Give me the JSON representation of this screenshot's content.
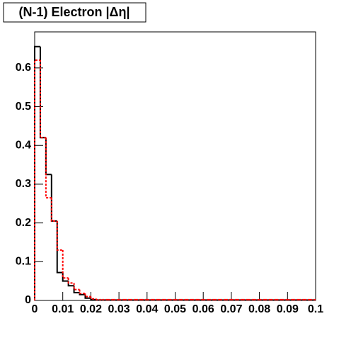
{
  "chart_data": {
    "type": "histogram",
    "title": "(N-1) Electron |Δη|",
    "bins": [
      0,
      0.002,
      0.004,
      0.006,
      0.008,
      0.01,
      0.012,
      0.014,
      0.016,
      0.018,
      0.02,
      0.022,
      0.024,
      0.026,
      0.028,
      0.03,
      0.032,
      0.034,
      0.036,
      0.038,
      0.04,
      0.042,
      0.044,
      0.046,
      0.048,
      0.05,
      0.052,
      0.054,
      0.056,
      0.058,
      0.06,
      0.062,
      0.064,
      0.066,
      0.068,
      0.07,
      0.072,
      0.074,
      0.076,
      0.078,
      0.08,
      0.082,
      0.084,
      0.086,
      0.088,
      0.09,
      0.092,
      0.094,
      0.096,
      0.098,
      0.1
    ],
    "series": [
      {
        "color": "#000000",
        "dashed": false,
        "values": [
          0.655,
          0.42,
          0.325,
          0.205,
          0.072,
          0.05,
          0.038,
          0.02,
          0.015,
          0.006,
          0.002,
          0.001,
          0.001,
          0.001,
          0.001,
          0.001,
          0.001,
          0.001,
          0.001,
          0.001,
          0.001,
          0.001,
          0.001,
          0.001,
          0.001,
          0.001,
          0.001,
          0.001,
          0.001,
          0.001,
          0.001,
          0.001,
          0.001,
          0.001,
          0.001,
          0.001,
          0.001,
          0.001,
          0.001,
          0.001,
          0.001,
          0.001,
          0.001,
          0.001,
          0.001,
          0.001,
          0.001,
          0.001,
          0.001,
          0.001
        ]
      },
      {
        "color": "#ff0000",
        "dashed": true,
        "values": [
          0.62,
          0.42,
          0.265,
          0.205,
          0.13,
          0.058,
          0.045,
          0.028,
          0.018,
          0.01,
          0.004,
          0.002,
          0.002,
          0.002,
          0.002,
          0.002,
          0.002,
          0.002,
          0.002,
          0.002,
          0.002,
          0.002,
          0.002,
          0.002,
          0.002,
          0.002,
          0.002,
          0.002,
          0.002,
          0.002,
          0.002,
          0.002,
          0.002,
          0.002,
          0.002,
          0.002,
          0.002,
          0.002,
          0.002,
          0.002,
          0.002,
          0.002,
          0.002,
          0.002,
          0.002,
          0.002,
          0.002,
          0.002,
          0.002,
          0.002
        ]
      }
    ],
    "xlim": [
      0,
      0.1
    ],
    "xticks": [
      0,
      0.01,
      0.02,
      0.03,
      0.04,
      0.05,
      0.06,
      0.07,
      0.08,
      0.09,
      0.1
    ],
    "ylim": [
      0,
      0.693
    ],
    "yticks": [
      0,
      0.1,
      0.2,
      0.3,
      0.4,
      0.5,
      0.6
    ]
  }
}
